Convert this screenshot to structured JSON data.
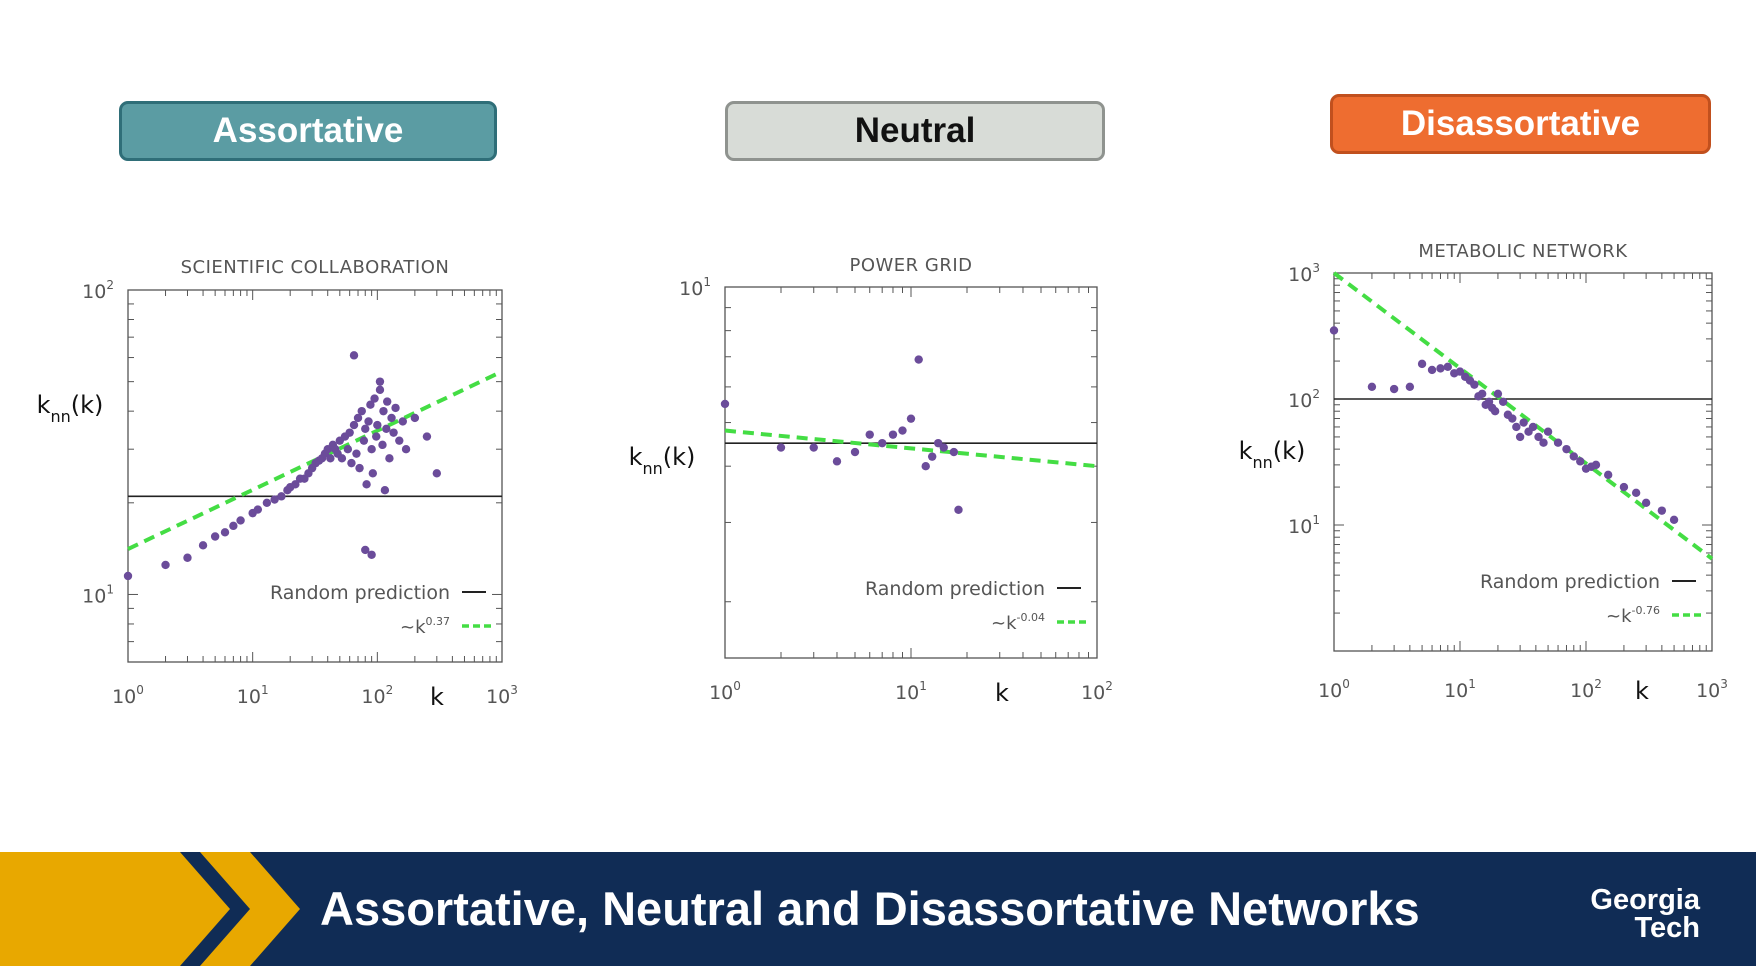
{
  "badges": [
    {
      "label": "Assortative",
      "bg": "#5b9ca3",
      "border": "#2f6e78",
      "color": "#ffffff"
    },
    {
      "label": "Neutral",
      "bg": "#d8dcd7",
      "border": "#8f938f",
      "color": "#111111"
    },
    {
      "label": "Disassortative",
      "bg": "#ee6d30",
      "border": "#c1501e",
      "color": "#ffffff"
    }
  ],
  "footer": {
    "title": "Assortative, Neutral and Disassortative Networks",
    "logo_line1": "Georgia",
    "logo_line2": "Tech"
  },
  "colors": {
    "points": "#6b4c9a",
    "fit": "#44dd44",
    "random": "#222222",
    "footer_bg": "#102c55",
    "footer_accent": "#e8a800"
  },
  "chart_data": [
    {
      "type": "scatter",
      "title": "SCIENTIFIC COLLABORATION",
      "xlabel": "k",
      "ylabel": "k_nn(k)",
      "xscale": "log",
      "yscale": "log",
      "xlim": [
        1,
        1000
      ],
      "ylim": [
        6,
        100
      ],
      "xticks": [
        1,
        10,
        100,
        1000
      ],
      "yticks": [
        10,
        100
      ],
      "random_prediction": 21,
      "fit": {
        "exponent": 0.37,
        "x": [
          1,
          1000
        ],
        "y": [
          14.1,
          54
        ]
      },
      "legend": {
        "random": "Random prediction",
        "fit_prefix": "~k",
        "fit_exponent": "0.37"
      },
      "points": [
        [
          1,
          11.5
        ],
        [
          2,
          12.5
        ],
        [
          3,
          13.2
        ],
        [
          4,
          14.5
        ],
        [
          5,
          15.5
        ],
        [
          6,
          16
        ],
        [
          7,
          16.8
        ],
        [
          8,
          17.5
        ],
        [
          10,
          18.5
        ],
        [
          11,
          19
        ],
        [
          13,
          20
        ],
        [
          15,
          20.5
        ],
        [
          17,
          21
        ],
        [
          19,
          22
        ],
        [
          20,
          22.5
        ],
        [
          22,
          23
        ],
        [
          24,
          24
        ],
        [
          26,
          24
        ],
        [
          28,
          25
        ],
        [
          30,
          26
        ],
        [
          32,
          27
        ],
        [
          34,
          27.5
        ],
        [
          36,
          28
        ],
        [
          38,
          29
        ],
        [
          40,
          30
        ],
        [
          42,
          28
        ],
        [
          44,
          31
        ],
        [
          46,
          30
        ],
        [
          48,
          29
        ],
        [
          50,
          32
        ],
        [
          52,
          28
        ],
        [
          55,
          33
        ],
        [
          58,
          30
        ],
        [
          60,
          34
        ],
        [
          62,
          27
        ],
        [
          65,
          36
        ],
        [
          68,
          29
        ],
        [
          70,
          38
        ],
        [
          72,
          26
        ],
        [
          75,
          40
        ],
        [
          78,
          32
        ],
        [
          80,
          35
        ],
        [
          82,
          23
        ],
        [
          85,
          37
        ],
        [
          88,
          42
        ],
        [
          90,
          30
        ],
        [
          92,
          25
        ],
        [
          95,
          44
        ],
        [
          98,
          33
        ],
        [
          100,
          36
        ],
        [
          105,
          47
        ],
        [
          110,
          31
        ],
        [
          112,
          40
        ],
        [
          115,
          22
        ],
        [
          118,
          35
        ],
        [
          120,
          43
        ],
        [
          125,
          28
        ],
        [
          130,
          38
        ],
        [
          135,
          34
        ],
        [
          140,
          41
        ],
        [
          150,
          32
        ],
        [
          160,
          37
        ],
        [
          170,
          30
        ],
        [
          200,
          38
        ],
        [
          250,
          33
        ],
        [
          300,
          25
        ],
        [
          65,
          61
        ],
        [
          80,
          14
        ],
        [
          90,
          13.5
        ],
        [
          105,
          50
        ]
      ]
    },
    {
      "type": "scatter",
      "title": "POWER GRID",
      "xlabel": "k",
      "ylabel": "k_nn(k)",
      "xscale": "log",
      "yscale": "log",
      "xlim": [
        1,
        100
      ],
      "ylim": [
        1.5,
        10
      ],
      "xticks": [
        1,
        10,
        100
      ],
      "yticks": [
        10
      ],
      "random_prediction": 4.5,
      "fit": {
        "exponent": -0.04,
        "x": [
          1,
          100
        ],
        "y": [
          4.8,
          4.0
        ]
      },
      "legend": {
        "random": "Random prediction",
        "fit_prefix": "~k",
        "fit_exponent": "-0.04"
      },
      "points": [
        [
          1,
          5.5
        ],
        [
          2,
          4.4
        ],
        [
          3,
          4.4
        ],
        [
          4,
          4.1
        ],
        [
          5,
          4.3
        ],
        [
          6,
          4.7
        ],
        [
          7,
          4.5
        ],
        [
          8,
          4.7
        ],
        [
          9,
          4.8
        ],
        [
          10,
          5.1
        ],
        [
          11,
          6.9
        ],
        [
          12,
          4.0
        ],
        [
          13,
          4.2
        ],
        [
          14,
          4.5
        ],
        [
          15,
          4.4
        ],
        [
          17,
          4.3
        ],
        [
          18,
          3.2
        ]
      ]
    },
    {
      "type": "scatter",
      "title": "METABOLIC NETWORK",
      "xlabel": "k",
      "ylabel": "k_nn(k)",
      "xscale": "log",
      "yscale": "log",
      "xlim": [
        1,
        1000
      ],
      "ylim": [
        1,
        1000
      ],
      "xticks": [
        1,
        10,
        100,
        1000
      ],
      "yticks": [
        10,
        100,
        1000
      ],
      "random_prediction": 100,
      "fit": {
        "exponent": -0.76,
        "x": [
          1,
          1000
        ],
        "y": [
          1000,
          5.4
        ]
      },
      "legend": {
        "random": "Random prediction",
        "fit_prefix": "~k",
        "fit_exponent": "-0.76"
      },
      "points": [
        [
          1,
          350
        ],
        [
          2,
          125
        ],
        [
          3,
          120
        ],
        [
          4,
          125
        ],
        [
          5,
          190
        ],
        [
          6,
          170
        ],
        [
          7,
          175
        ],
        [
          8,
          180
        ],
        [
          9,
          160
        ],
        [
          10,
          165
        ],
        [
          11,
          150
        ],
        [
          12,
          140
        ],
        [
          13,
          130
        ],
        [
          14,
          105
        ],
        [
          15,
          110
        ],
        [
          16,
          90
        ],
        [
          17,
          95
        ],
        [
          18,
          85
        ],
        [
          19,
          80
        ],
        [
          20,
          110
        ],
        [
          22,
          95
        ],
        [
          24,
          75
        ],
        [
          26,
          70
        ],
        [
          28,
          60
        ],
        [
          30,
          50
        ],
        [
          32,
          65
        ],
        [
          35,
          55
        ],
        [
          38,
          60
        ],
        [
          42,
          50
        ],
        [
          46,
          45
        ],
        [
          50,
          55
        ],
        [
          60,
          45
        ],
        [
          70,
          40
        ],
        [
          80,
          35
        ],
        [
          90,
          32
        ],
        [
          100,
          28
        ],
        [
          120,
          30
        ],
        [
          150,
          25
        ],
        [
          200,
          20
        ],
        [
          250,
          18
        ],
        [
          300,
          15
        ],
        [
          400,
          13
        ],
        [
          500,
          11
        ],
        [
          110,
          29
        ]
      ]
    }
  ]
}
